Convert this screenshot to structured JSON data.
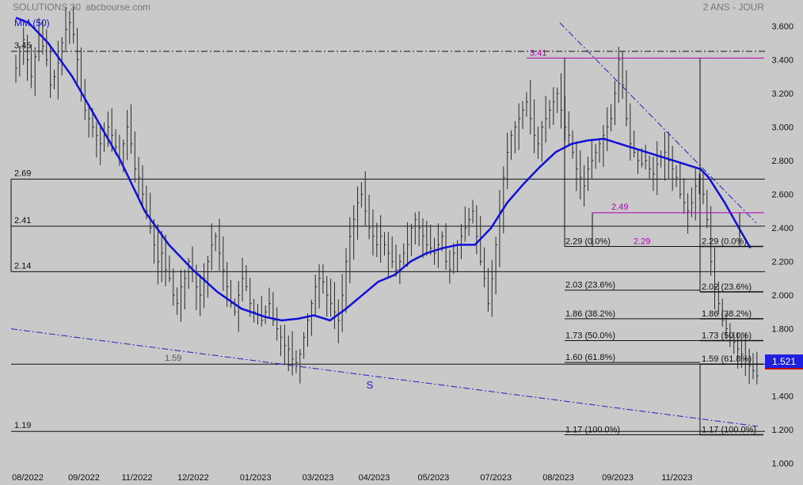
{
  "header": {
    "title": "SOLUTIONS 30",
    "source": "abcbourse.com",
    "period": "2 ANS - JOUR",
    "ma_label": "MM (50)"
  },
  "colors": {
    "background": "#c9c9c9",
    "ma_line": "#1010d8",
    "bars": "#2a2a2a",
    "level_lines": "#111111",
    "fib_magenta": "#b000b0",
    "price_tag_bg": "#2020e0",
    "price_tag_text": "#ffffff",
    "trend_dashdot": "#2020c0",
    "annotation_blue": "#2020c0"
  },
  "chart_data": {
    "type": "ohlc",
    "ylim": [
      0.97,
      3.68
    ],
    "yticks": [
      "1.000",
      "1.200",
      "1.400",
      "1.600",
      "1.800",
      "2.000",
      "2.200",
      "2.400",
      "2.600",
      "2.800",
      "3.000",
      "3.200",
      "3.400",
      "3.600"
    ],
    "xticks": [
      "08/2022",
      "09/2022",
      "11/2022",
      "12/2022",
      "01/2023",
      "03/2023",
      "04/2023",
      "05/2023",
      "07/2023",
      "08/2023",
      "09/2023",
      "11/2023"
    ],
    "last_price": "1.521",
    "price_closes": [
      3.35,
      3.45,
      3.52,
      3.4,
      3.3,
      3.42,
      3.55,
      3.48,
      3.4,
      3.25,
      3.3,
      3.38,
      3.5,
      3.58,
      3.62,
      3.55,
      3.4,
      3.2,
      3.1,
      3.05,
      3.0,
      2.95,
      2.9,
      2.95,
      3.0,
      2.95,
      2.88,
      2.8,
      2.9,
      3.0,
      2.9,
      2.75,
      2.7,
      2.6,
      2.5,
      2.4,
      2.3,
      2.2,
      2.25,
      2.15,
      2.1,
      2.0,
      1.95,
      2.05,
      2.1,
      2.2,
      2.15,
      2.05,
      2.0,
      2.1,
      2.2,
      2.3,
      2.35,
      2.25,
      2.15,
      2.05,
      1.95,
      1.9,
      2.0,
      2.1,
      2.05,
      1.95,
      1.9,
      1.88,
      1.85,
      1.9,
      1.95,
      1.85,
      1.8,
      1.75,
      1.7,
      1.68,
      1.62,
      1.6,
      1.65,
      1.75,
      1.85,
      1.95,
      2.05,
      2.1,
      2.08,
      2.0,
      1.95,
      1.9,
      1.85,
      2.0,
      2.2,
      2.35,
      2.45,
      2.55,
      2.6,
      2.5,
      2.4,
      2.35,
      2.3,
      2.35,
      2.3,
      2.25,
      2.2,
      2.15,
      2.2,
      2.25,
      2.3,
      2.4,
      2.45,
      2.4,
      2.35,
      2.3,
      2.28,
      2.25,
      2.3,
      2.35,
      2.2,
      2.15,
      2.25,
      2.3,
      2.35,
      2.4,
      2.45,
      2.5,
      2.35,
      2.2,
      2.1,
      1.95,
      2.1,
      2.3,
      2.5,
      2.7,
      2.85,
      2.95,
      3.0,
      3.05,
      3.1,
      3.15,
      3.05,
      2.95,
      2.9,
      3.0,
      3.05,
      3.1,
      3.15,
      3.2,
      3.1,
      3.0,
      2.95,
      2.85,
      2.75,
      2.7,
      2.65,
      2.75,
      2.8,
      2.85,
      2.9,
      2.95,
      3.0,
      3.05,
      3.2,
      3.4,
      3.25,
      3.05,
      2.9,
      2.85,
      2.8,
      2.78,
      2.8,
      2.75,
      2.72,
      2.78,
      2.82,
      2.85,
      2.8,
      2.75,
      2.7,
      2.6,
      2.55,
      2.5,
      2.55,
      2.65,
      2.7,
      2.6,
      2.45,
      2.2,
      2.05,
      1.95,
      1.85,
      1.8,
      1.75,
      1.72,
      1.68,
      1.65,
      1.62,
      1.58,
      1.55,
      1.52
    ],
    "ma50": [
      [
        0.0,
        3.65
      ],
      [
        0.8,
        3.62
      ],
      [
        2.0,
        3.5
      ],
      [
        3.5,
        3.3
      ],
      [
        5.0,
        3.05
      ],
      [
        6.5,
        2.8
      ],
      [
        8.0,
        2.5
      ],
      [
        9.5,
        2.3
      ],
      [
        11.0,
        2.15
      ],
      [
        12.5,
        2.02
      ],
      [
        14.0,
        1.92
      ],
      [
        15.5,
        1.87
      ],
      [
        16.5,
        1.85
      ],
      [
        17.5,
        1.86
      ],
      [
        18.5,
        1.88
      ],
      [
        19.5,
        1.85
      ],
      [
        20.5,
        1.92
      ],
      [
        21.5,
        2.0
      ],
      [
        22.5,
        2.08
      ],
      [
        23.5,
        2.12
      ],
      [
        24.5,
        2.2
      ],
      [
        25.5,
        2.25
      ],
      [
        26.5,
        2.28
      ],
      [
        27.5,
        2.3
      ],
      [
        28.5,
        2.3
      ],
      [
        29.5,
        2.4
      ],
      [
        30.5,
        2.55
      ],
      [
        31.5,
        2.66
      ],
      [
        32.5,
        2.76
      ],
      [
        33.5,
        2.85
      ],
      [
        34.5,
        2.9
      ],
      [
        35.5,
        2.92
      ],
      [
        36.5,
        2.93
      ],
      [
        37.5,
        2.9
      ],
      [
        38.5,
        2.87
      ],
      [
        39.5,
        2.84
      ],
      [
        40.5,
        2.81
      ],
      [
        41.5,
        2.78
      ],
      [
        42.5,
        2.75
      ],
      [
        43.0,
        2.7
      ],
      [
        44.0,
        2.55
      ],
      [
        45.0,
        2.38
      ],
      [
        45.6,
        2.28
      ]
    ],
    "levels": [
      {
        "value": 3.45,
        "label": "3.45",
        "style": "dashdot"
      },
      {
        "value": 2.69,
        "label": "2.69",
        "style": "solid"
      },
      {
        "value": 2.41,
        "label": "2.41",
        "style": "solid"
      },
      {
        "value": 2.14,
        "label": "2.14",
        "style": "solid"
      },
      {
        "value": 1.59,
        "label": "1.59",
        "style": "solid"
      },
      {
        "value": 1.19,
        "label": "1.19",
        "style": "solid"
      }
    ],
    "fib_left": [
      {
        "value": 2.29,
        "label": "2.29  (0.0%)"
      },
      {
        "value": 2.03,
        "label": "2.03  (23.6%)"
      },
      {
        "value": 1.86,
        "label": "1.86  (38.2%)"
      },
      {
        "value": 1.73,
        "label": "1.73  (50.0%)"
      },
      {
        "value": 1.6,
        "label": "1.60  (61.8%)"
      },
      {
        "value": 1.17,
        "label": "1.17  (100.0%)"
      }
    ],
    "fib_right": [
      {
        "value": 2.29,
        "label": "2.29  (0.0%)"
      },
      {
        "value": 2.02,
        "label": "2.02  (23.6%)"
      },
      {
        "value": 1.86,
        "label": "1.86  (38.2%)"
      },
      {
        "value": 1.73,
        "label": "1.73  (50.0%)"
      },
      {
        "value": 1.59,
        "label": "1.59  (61.8%)"
      },
      {
        "value": 1.17,
        "label": "1.17  (100.0%)"
      }
    ],
    "magenta_labels": [
      {
        "value": 3.41,
        "label": "3.41"
      },
      {
        "value": 2.49,
        "label": "2.49"
      },
      {
        "value": 2.29,
        "label": "2.29"
      }
    ],
    "annotation": "S"
  }
}
